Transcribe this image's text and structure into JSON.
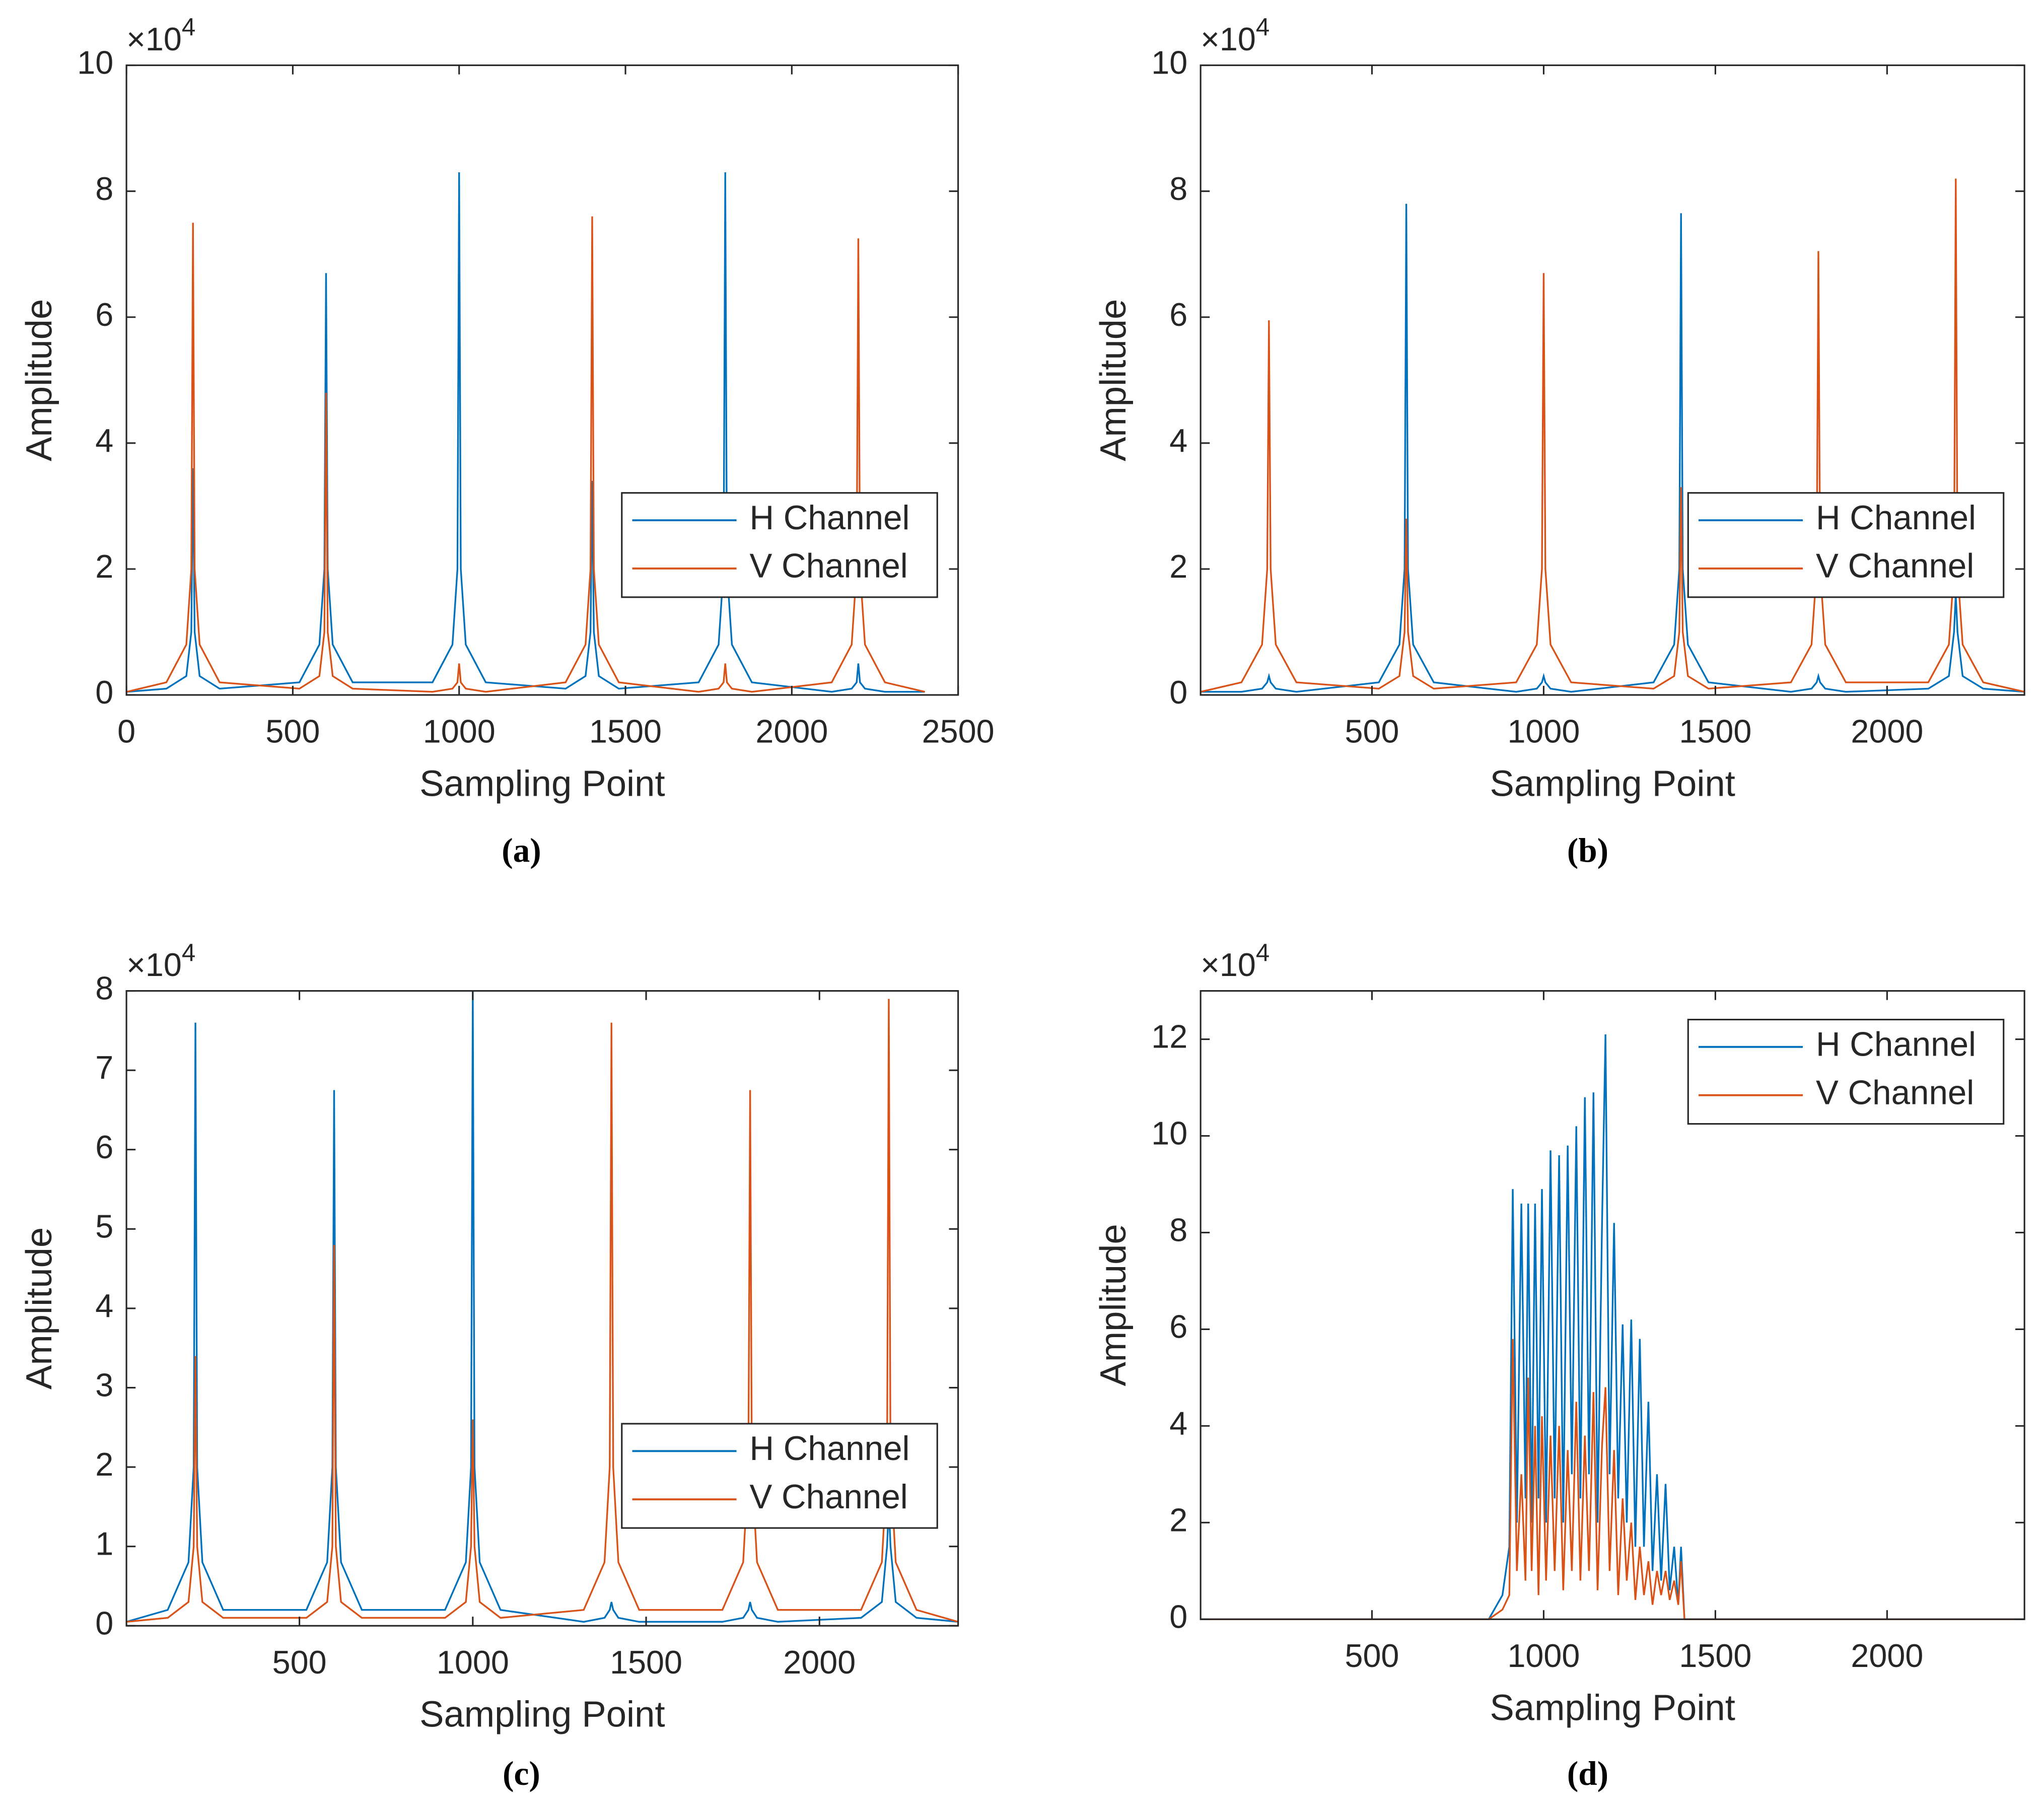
{
  "chart_data": [
    {
      "type": "line",
      "caption": "(a)",
      "x_label": "Sampling Point",
      "y_label": "Amplitude",
      "y_multiplier": {
        "base": "×10",
        "exponent": "4"
      },
      "xlim": [
        0,
        2500
      ],
      "xticks": [
        0,
        500,
        1000,
        1500,
        2000,
        2500
      ],
      "ylim": [
        0,
        10
      ],
      "yticks": [
        0,
        2,
        4,
        6,
        8,
        10
      ],
      "legend": "southeast",
      "x": [
        1,
        120,
        180,
        195,
        200,
        205,
        220,
        280,
        520,
        580,
        595,
        600,
        605,
        620,
        680,
        920,
        980,
        995,
        1000,
        1005,
        1020,
        1080,
        1320,
        1380,
        1395,
        1400,
        1405,
        1420,
        1480,
        1720,
        1780,
        1795,
        1800,
        1805,
        1820,
        1880,
        2120,
        2180,
        2195,
        2200,
        2205,
        2220,
        2280,
        2400
      ],
      "series": [
        {
          "name": "H Channel",
          "color": "#0072bd",
          "values": [
            0.05,
            0.1,
            0.3,
            1,
            3.6,
            1,
            0.3,
            0.1,
            0.2,
            0.8,
            2,
            6.7,
            2,
            0.8,
            0.2,
            0.2,
            0.8,
            2,
            8.3,
            2,
            0.8,
            0.2,
            0.1,
            0.3,
            1,
            3.4,
            1,
            0.3,
            0.1,
            0.2,
            0.8,
            2,
            8.3,
            2,
            0.8,
            0.2,
            0.05,
            0.1,
            0.2,
            0.5,
            0.2,
            0.1,
            0.05,
            0.05
          ]
        },
        {
          "name": "V Channel",
          "color": "#d95319",
          "values": [
            0.05,
            0.2,
            0.8,
            2,
            7.5,
            2,
            0.8,
            0.2,
            0.1,
            0.3,
            1,
            4.8,
            1,
            0.3,
            0.1,
            0.05,
            0.1,
            0.2,
            0.5,
            0.2,
            0.1,
            0.05,
            0.2,
            0.8,
            2,
            7.6,
            2,
            0.8,
            0.2,
            0.05,
            0.1,
            0.2,
            0.5,
            0.2,
            0.1,
            0.05,
            0.2,
            0.8,
            2,
            7.25,
            2,
            0.8,
            0.2,
            0.05
          ]
        }
      ]
    },
    {
      "type": "line",
      "caption": "(b)",
      "x_label": "Sampling Point",
      "y_label": "Amplitude",
      "y_multiplier": {
        "base": "×10",
        "exponent": "4"
      },
      "xlim": [
        1,
        2400
      ],
      "xticks": [
        500,
        1000,
        1500,
        2000
      ],
      "ylim": [
        0,
        10
      ],
      "yticks": [
        0,
        2,
        4,
        6,
        8,
        10
      ],
      "legend": "southeast",
      "x": [
        1,
        120,
        180,
        195,
        200,
        205,
        220,
        280,
        520,
        580,
        595,
        600,
        605,
        620,
        680,
        920,
        980,
        995,
        1000,
        1005,
        1020,
        1080,
        1320,
        1380,
        1395,
        1400,
        1405,
        1420,
        1480,
        1720,
        1780,
        1795,
        1800,
        1805,
        1820,
        1880,
        2120,
        2180,
        2195,
        2200,
        2205,
        2220,
        2280,
        2400
      ],
      "series": [
        {
          "name": "H Channel",
          "color": "#0072bd",
          "values": [
            0.05,
            0.05,
            0.1,
            0.2,
            0.3,
            0.2,
            0.1,
            0.05,
            0.2,
            0.8,
            2,
            7.8,
            2,
            0.8,
            0.2,
            0.05,
            0.1,
            0.2,
            0.3,
            0.2,
            0.1,
            0.05,
            0.2,
            0.8,
            2,
            7.65,
            2,
            0.8,
            0.2,
            0.05,
            0.1,
            0.2,
            0.3,
            0.2,
            0.1,
            0.05,
            0.1,
            0.3,
            1,
            1.6,
            1,
            0.3,
            0.1,
            0.05
          ]
        },
        {
          "name": "V Channel",
          "color": "#d95319",
          "values": [
            0.05,
            0.2,
            0.8,
            2,
            5.95,
            2,
            0.8,
            0.2,
            0.1,
            0.3,
            1,
            2.8,
            1,
            0.3,
            0.1,
            0.2,
            0.8,
            2,
            6.7,
            2,
            0.8,
            0.2,
            0.1,
            0.3,
            1,
            3.3,
            1,
            0.3,
            0.1,
            0.2,
            0.8,
            2,
            7.05,
            2,
            0.8,
            0.2,
            0.2,
            0.8,
            2,
            8.2,
            2,
            0.8,
            0.2,
            0.05
          ]
        }
      ]
    },
    {
      "type": "line",
      "caption": "(c)",
      "x_label": "Sampling Point",
      "y_label": "Amplitude",
      "y_multiplier": {
        "base": "×10",
        "exponent": "4"
      },
      "xlim": [
        1,
        2400
      ],
      "xticks": [
        500,
        1000,
        1500,
        2000
      ],
      "ylim": [
        0,
        8
      ],
      "yticks": [
        0,
        1,
        2,
        3,
        4,
        5,
        6,
        7,
        8
      ],
      "legend": "southeast",
      "x": [
        1,
        120,
        180,
        195,
        200,
        205,
        220,
        280,
        520,
        580,
        595,
        600,
        605,
        620,
        680,
        920,
        980,
        995,
        1000,
        1005,
        1020,
        1080,
        1320,
        1380,
        1395,
        1400,
        1405,
        1420,
        1480,
        1720,
        1780,
        1795,
        1800,
        1805,
        1820,
        1880,
        2120,
        2180,
        2195,
        2200,
        2205,
        2220,
        2280,
        2400
      ],
      "series": [
        {
          "name": "H Channel",
          "color": "#0072bd",
          "values": [
            0.05,
            0.2,
            0.8,
            2,
            7.6,
            2,
            0.8,
            0.2,
            0.2,
            0.8,
            2,
            6.75,
            2,
            0.8,
            0.2,
            0.2,
            0.8,
            2,
            8,
            2,
            0.8,
            0.2,
            0.05,
            0.1,
            0.2,
            0.3,
            0.2,
            0.1,
            0.05,
            0.05,
            0.1,
            0.2,
            0.3,
            0.2,
            0.1,
            0.05,
            0.1,
            0.3,
            1,
            1.5,
            1,
            0.3,
            0.1,
            0.05
          ]
        },
        {
          "name": "V Channel",
          "color": "#d95319",
          "values": [
            0.05,
            0.1,
            0.3,
            1,
            3.4,
            1,
            0.3,
            0.1,
            0.1,
            0.3,
            1,
            4.8,
            1,
            0.3,
            0.1,
            0.1,
            0.3,
            1,
            2.6,
            1,
            0.3,
            0.1,
            0.2,
            0.8,
            2,
            7.6,
            2,
            0.8,
            0.2,
            0.2,
            0.8,
            2,
            6.75,
            2,
            0.8,
            0.2,
            0.2,
            0.8,
            2,
            7.9,
            2,
            0.8,
            0.2,
            0.05
          ]
        }
      ]
    },
    {
      "type": "line",
      "caption": "(d)",
      "x_label": "Sampling Point",
      "y_label": "Amplitude",
      "y_multiplier": {
        "base": "×10",
        "exponent": "4"
      },
      "xlim": [
        1,
        2400
      ],
      "xticks": [
        500,
        1000,
        1500,
        2000
      ],
      "ylim": [
        0,
        13
      ],
      "yticks": [
        0,
        2,
        4,
        6,
        8,
        10,
        12
      ],
      "legend": "northeast",
      "x": [
        1,
        840,
        880,
        900,
        910,
        922,
        935,
        947,
        955,
        965,
        975,
        985,
        995,
        1007,
        1020,
        1032,
        1045,
        1057,
        1070,
        1082,
        1095,
        1107,
        1120,
        1132,
        1145,
        1157,
        1170,
        1180,
        1192,
        1205,
        1217,
        1230,
        1242,
        1255,
        1267,
        1280,
        1292,
        1305,
        1317,
        1330,
        1342,
        1355,
        1367,
        1380,
        1392,
        1400,
        1410,
        2400
      ],
      "series": [
        {
          "name": "H Channel",
          "color": "#0072bd",
          "values": [
            0,
            0,
            0.5,
            1.5,
            8.9,
            2,
            8.6,
            2.5,
            8.6,
            2,
            8.6,
            2.5,
            8.9,
            2,
            9.7,
            2.5,
            9.6,
            2,
            9.8,
            3,
            10.2,
            2.5,
            10.8,
            3,
            10.9,
            2,
            8.2,
            12.1,
            3,
            8.2,
            2.5,
            6.1,
            2,
            6.2,
            1.5,
            5.8,
            1.5,
            4.5,
            1,
            3,
            0.8,
            2.8,
            0.6,
            1.5,
            0.3,
            1.5,
            0,
            0
          ]
        },
        {
          "name": "V Channel",
          "color": "#d95319",
          "values": [
            0,
            0,
            0.2,
            0.5,
            5.8,
            1,
            3,
            0.8,
            5,
            1,
            4,
            0.5,
            4.2,
            0.8,
            3.8,
            1,
            4,
            0.6,
            3.5,
            1,
            4.5,
            0.8,
            3.8,
            1,
            4.7,
            0.6,
            3.6,
            4.8,
            1,
            3.5,
            0.5,
            2.5,
            0.8,
            2,
            0.4,
            1.5,
            0.5,
            1.2,
            0.3,
            1,
            0.5,
            1,
            0.4,
            0.8,
            0.3,
            1.2,
            0,
            0
          ]
        }
      ]
    }
  ]
}
